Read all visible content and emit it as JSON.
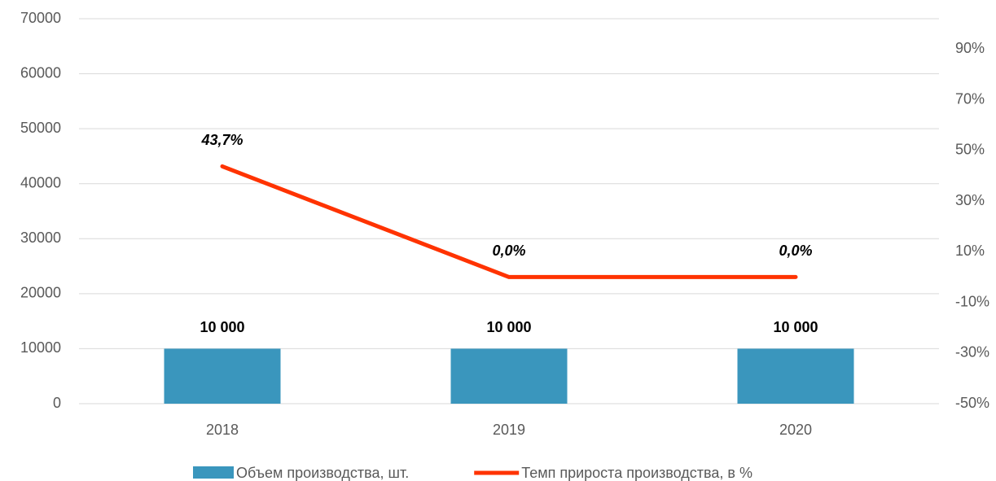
{
  "chart_data": {
    "type": "bar",
    "categories": [
      "2018",
      "2019",
      "2020"
    ],
    "series": [
      {
        "name": "Объем производства, шт.",
        "type": "bar",
        "color": "#3a96bd",
        "values": [
          10000,
          10000,
          10000
        ],
        "value_labels": [
          "10 000",
          "10 000",
          "10 000"
        ]
      },
      {
        "name": "Темп прироста производства, в %",
        "type": "line",
        "axis": "y2",
        "color": "#ff3300",
        "values": [
          43.7,
          0,
          0
        ],
        "value_labels": [
          "43,7%",
          "0,0%",
          "0,0%"
        ]
      }
    ],
    "ylim": [
      0,
      70000
    ],
    "yticks": [
      0,
      10000,
      20000,
      30000,
      40000,
      50000,
      60000,
      70000
    ],
    "y2lim": [
      -50,
      102
    ],
    "y2ticks": [
      {
        "value": -50,
        "label": "-50%"
      },
      {
        "value": -30,
        "label": "-30%"
      },
      {
        "value": -10,
        "label": "-10%"
      },
      {
        "value": 10,
        "label": "10%"
      },
      {
        "value": 30,
        "label": "30%"
      },
      {
        "value": 50,
        "label": "50%"
      },
      {
        "value": 70,
        "label": "70%"
      },
      {
        "value": 90,
        "label": "90%"
      }
    ],
    "grid": true,
    "legend": "bottom"
  }
}
